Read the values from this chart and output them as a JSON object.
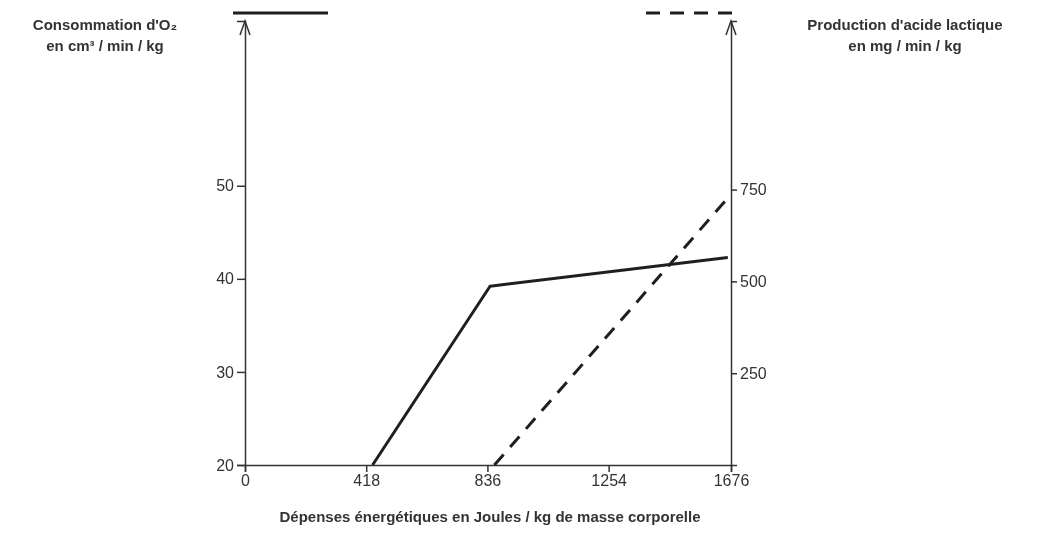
{
  "chart_data": {
    "type": "line",
    "xlabel": "Dépenses énergétiques en Joules / kg de masse corporelle",
    "ylabel": "Consommation d'O₂\nen cm³ / min / kg",
    "y2label": "Production d'acide lactique\nen mg / min / kg",
    "xlim": [
      0,
      1676
    ],
    "xticks": [
      0,
      418,
      836,
      1254,
      1676
    ],
    "ylim": [
      20,
      67.7
    ],
    "yticks": [
      20,
      30,
      40,
      50
    ],
    "y2lim": [
      0,
      1209
    ],
    "y2ticks": [
      250,
      500,
      750
    ],
    "series": [
      {
        "color": "#1f1f1f",
        "line_style": "solid",
        "axis": "y",
        "x": [
          440,
          845,
          1665
        ],
        "values": [
          20,
          39.2,
          42.3
        ]
      },
      {
        "color": "#1f1f1f",
        "line_style": "dashed",
        "axis": "y2",
        "x": [
          860,
          1674
        ],
        "values": [
          0,
          735
        ]
      }
    ],
    "grid": false
  }
}
